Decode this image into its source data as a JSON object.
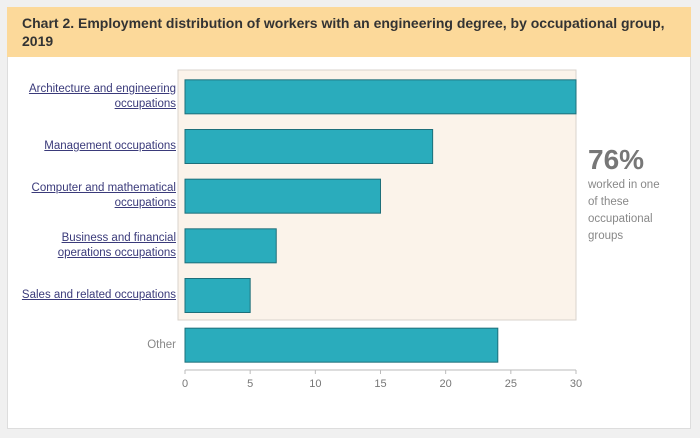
{
  "chart_data": {
    "type": "bar",
    "orientation": "horizontal",
    "title": "Chart 2. Employment distribution of workers with an engineering degree, by occupational group, 2019",
    "categories": [
      "Architecture and engineering occupations",
      "Management occupations",
      "Computer and mathematical occupations",
      "Business and financial operations occupations",
      "Sales and related occupations",
      "Other"
    ],
    "values": [
      30,
      19,
      15,
      7,
      5,
      24
    ],
    "color": "#2aacbc",
    "xlim": [
      0,
      30
    ],
    "xticks": [
      0,
      5,
      10,
      15,
      20,
      25,
      30
    ],
    "grid": false,
    "highlight": "76%",
    "highlight_text": "worked in one of these occupational groups"
  }
}
